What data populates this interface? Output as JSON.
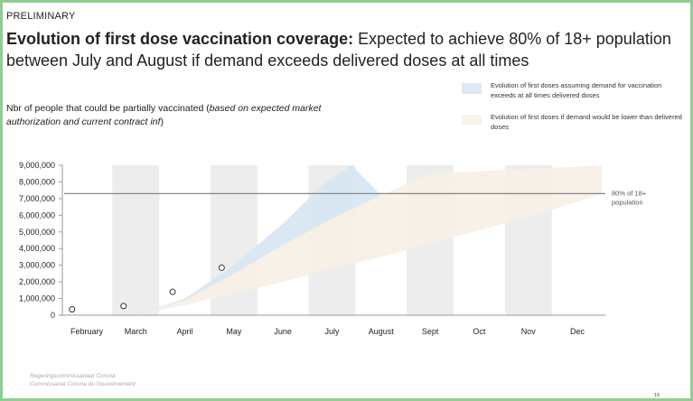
{
  "header": {
    "tag": "PRELIMINARY",
    "title_bold": "Evolution of first dose vaccination coverage:",
    "title_rest": " Expected to achieve 80% of 18+ population between July and August if demand exceeds delivered doses at all times"
  },
  "subtitle": {
    "main": "Nbr of people that could be partially vaccinated (",
    "italic": "based on expected market authorization and current contract inf",
    "end": ")"
  },
  "legend": [
    {
      "label": "Evolution of first doses assuming demand for vaccination exceeds at all times delivered doses",
      "color": "#dde8f4"
    },
    {
      "label": "Evolution of first doses if demand would be lower than delivered doses",
      "color": "#faf3ea"
    }
  ],
  "colors": {
    "upper_band": "#d6e5f3",
    "lower_band": "#f8f0e6",
    "month_band": "#ededed",
    "axis": "#999999",
    "target_line": "#888888"
  },
  "footer": {
    "line1": "Regeringscommissariaat Corona",
    "line2": "Commissariat Corona du Gouvernement"
  },
  "page_number": "19",
  "chart_data": {
    "type": "area",
    "categories": [
      "February",
      "March",
      "April",
      "May",
      "June",
      "July",
      "August",
      "Sept",
      "Oct",
      "Nov",
      "Dec"
    ],
    "y_ticks": [
      0,
      1000000,
      2000000,
      3000000,
      4000000,
      5000000,
      6000000,
      7000000,
      8000000,
      9000000
    ],
    "y_tick_labels": [
      "0",
      "1,000,000",
      "2,000,000",
      "3,000,000",
      "4,000,000",
      "5,000,000",
      "6,000,000",
      "7,000,000",
      "8,000,000",
      "9,000,000"
    ],
    "ylim": [
      0,
      9000000
    ],
    "shaded_months": [
      "March",
      "May",
      "July",
      "Sept",
      "Nov"
    ],
    "target": {
      "value": 7300000,
      "label_line1": "80% of 18+",
      "label_line2": "population"
    },
    "series": [
      {
        "name": "Evolution of first doses assuming demand for vaccination exceeds at all times delivered doses",
        "x": [
          1.0,
          2.0,
          3.0,
          4.0,
          4.8,
          5.4
        ],
        "y": [
          0,
          1000000,
          3000000,
          5500000,
          7800000,
          9200000
        ]
      },
      {
        "name": "Evolution of first doses if demand would be lower than delivered doses",
        "upper": {
          "x": [
            1.0,
            2.0,
            3.0,
            4.0,
            5.0,
            6.0,
            7.0,
            10.5
          ],
          "y": [
            0,
            900000,
            2500000,
            4200000,
            5800000,
            7200000,
            8500000,
            9200000
          ]
        },
        "lower": {
          "x": [
            1.0,
            2.0,
            3.0,
            4.0,
            5.0,
            6.0,
            7.0,
            8.0,
            9.0,
            10.0,
            10.5
          ],
          "y": [
            0,
            600000,
            1300000,
            2000000,
            2800000,
            3500000,
            4300000,
            5100000,
            5900000,
            6800000,
            7300000
          ]
        }
      }
    ],
    "points": {
      "x": [
        -0.3,
        0.75,
        1.75,
        2.75
      ],
      "y": [
        350000,
        550000,
        1400000,
        2850000
      ]
    }
  }
}
